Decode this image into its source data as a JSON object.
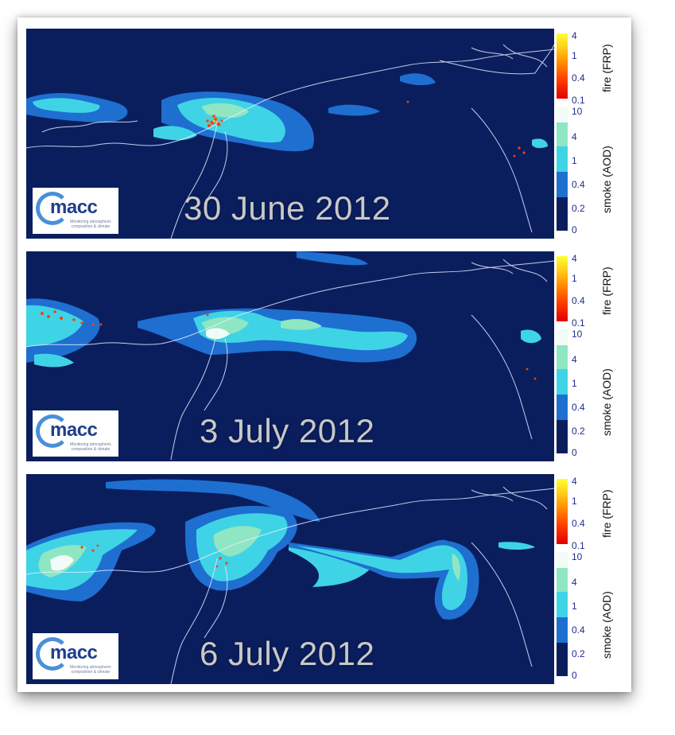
{
  "panels": [
    {
      "date": "30 June 2012"
    },
    {
      "date": "3 July 2012"
    },
    {
      "date": "6 July 2012"
    }
  ],
  "logo": {
    "text": "macc",
    "tagline": "Monitoring atmospheric composition & climate"
  },
  "legend": {
    "fire_title": "fire (FRP)",
    "fire_ticks": [
      "4",
      "1",
      "0.4",
      "0.1"
    ],
    "smoke_title": "smoke (AOD)",
    "smoke_ticks": [
      "10",
      "4",
      "1",
      "0.4",
      "0.2",
      "0"
    ],
    "fire_colors": [
      "#ffff33",
      "#ff8c00",
      "#e00000"
    ],
    "smoke_colors": [
      "#f2fbf7",
      "#8fe6c2",
      "#3fd3e6",
      "#1e6fd0",
      "#0a1e5e"
    ]
  }
}
